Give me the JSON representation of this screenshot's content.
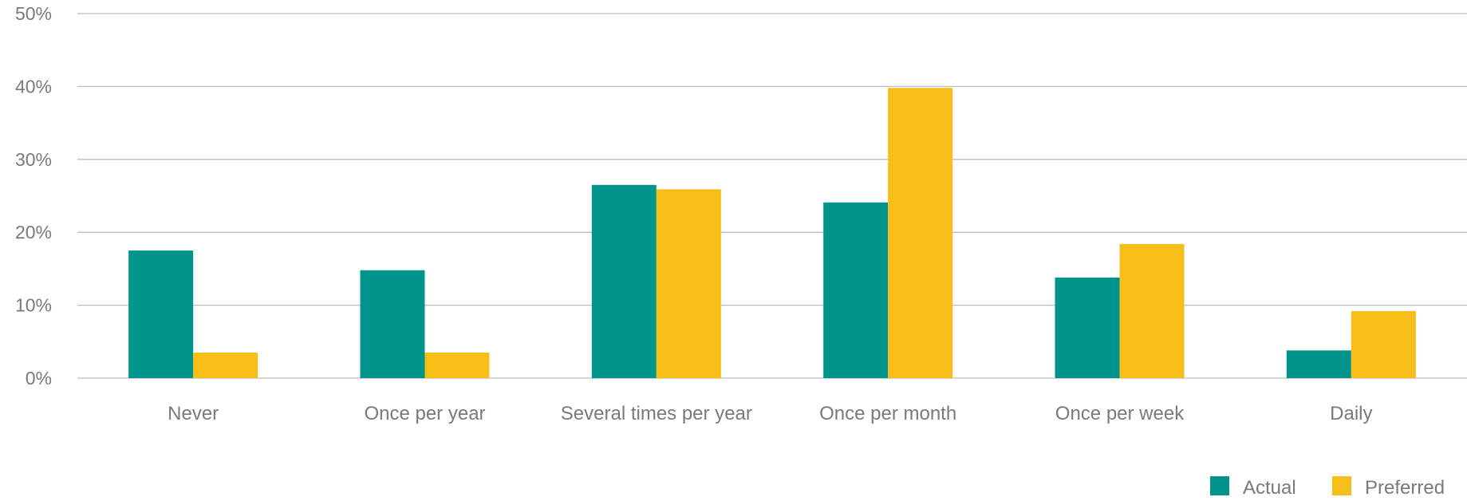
{
  "chart_data": {
    "type": "bar",
    "categories": [
      "Never",
      "Once per year",
      "Several times per year",
      "Once per month",
      "Once per week",
      "Daily"
    ],
    "series": [
      {
        "name": "Actual",
        "values": [
          17.5,
          14.8,
          26.5,
          24.1,
          13.8,
          3.8
        ],
        "color": "#00958C"
      },
      {
        "name": "Preferred",
        "values": [
          3.5,
          3.5,
          25.9,
          39.8,
          18.4,
          9.2
        ],
        "color": "#F7BE17"
      }
    ],
    "ylim": [
      0,
      50
    ],
    "yticks": [
      0,
      10,
      20,
      30,
      40,
      50
    ],
    "ytick_labels": [
      "0%",
      "10%",
      "20%",
      "30%",
      "40%",
      "50%"
    ],
    "title": "",
    "xlabel": "",
    "ylabel": "",
    "grid": true,
    "legend_position": "bottom-right",
    "colors": {
      "gridline": "#BDBDBD",
      "tick_text": "#7A7A7A"
    }
  }
}
